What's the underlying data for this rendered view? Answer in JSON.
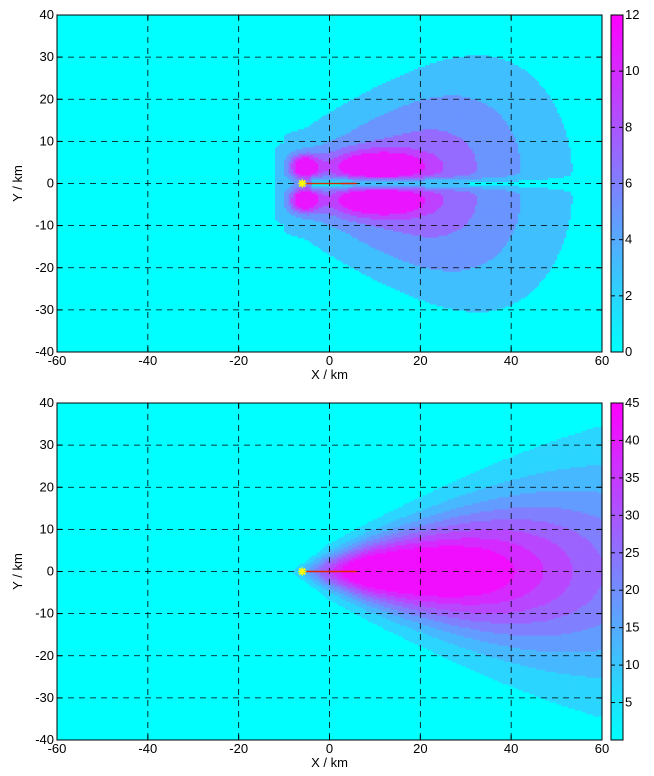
{
  "chart_data": [
    {
      "type": "heatmap",
      "style": "filled-contour",
      "xlabel": "X / km",
      "ylabel": "Y / km",
      "xlim": [
        -60,
        60
      ],
      "ylim": [
        -40,
        40
      ],
      "x_ticks": [
        "-60",
        "-40",
        "-20",
        "0",
        "20",
        "40",
        "60"
      ],
      "y_ticks": [
        "-40",
        "-30",
        "-20",
        "-10",
        "0",
        "10",
        "20",
        "30",
        "40"
      ],
      "grid": true,
      "colorbar": {
        "min": 0,
        "max": 12,
        "ticks": [
          "0",
          "2",
          "4",
          "6",
          "8",
          "10",
          "12"
        ],
        "colors": [
          "#00ffff",
          "#ff00ff"
        ]
      },
      "source_marker": {
        "x": -6,
        "y": 0
      },
      "track": {
        "x": [
          -6,
          6
        ],
        "y": [
          0,
          0
        ],
        "color": "#dd2200"
      },
      "contour_levels": [
        2,
        4,
        6,
        8,
        10
      ],
      "description": "Two lobes symmetric about y=0 extending downstream (+x), peaks near x=-5 and x=10..15, y=±4"
    },
    {
      "type": "heatmap",
      "style": "filled-contour",
      "xlabel": "X / km",
      "ylabel": "Y / km",
      "xlim": [
        -60,
        60
      ],
      "ylim": [
        -40,
        40
      ],
      "x_ticks": [
        "-60",
        "-40",
        "-20",
        "0",
        "20",
        "40",
        "60"
      ],
      "y_ticks": [
        "-40",
        "-30",
        "-20",
        "-10",
        "0",
        "10",
        "20",
        "30",
        "40"
      ],
      "grid": true,
      "colorbar": {
        "min": 0,
        "max": 45,
        "ticks": [
          "5",
          "10",
          "15",
          "20",
          "25",
          "30",
          "35",
          "40",
          "45"
        ],
        "colors": [
          "#00ffff",
          "#ff00ff"
        ]
      },
      "source_marker": {
        "x": -6,
        "y": 0
      },
      "track": {
        "x": [
          -6,
          6
        ],
        "y": [
          0,
          0
        ],
        "color": "#dd2200"
      },
      "contour_levels": [
        5,
        10,
        15,
        20,
        25,
        30,
        35,
        40
      ],
      "description": "Single plume centered on y=0 widening downstream (+x), peak near x=12, y=0"
    }
  ]
}
